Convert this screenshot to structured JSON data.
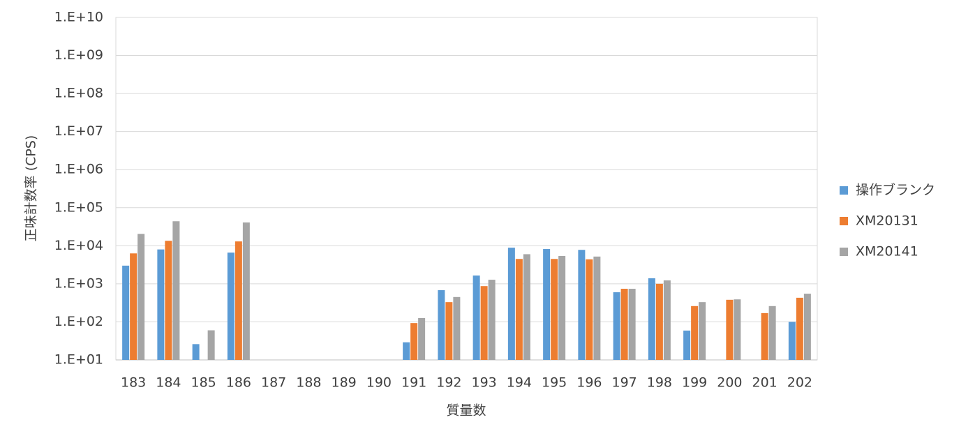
{
  "chart_data": {
    "type": "bar",
    "y_label": "正味計数率 (CPS)",
    "x_label": "質量数",
    "categories": [
      "183",
      "184",
      "185",
      "186",
      "187",
      "188",
      "189",
      "190",
      "191",
      "192",
      "193",
      "194",
      "195",
      "196",
      "197",
      "198",
      "199",
      "200",
      "201",
      "202"
    ],
    "series": [
      {
        "name": "操作ブランク",
        "color": "#5b9bd5",
        "values": [
          3000,
          8000,
          26,
          6600,
          10,
          10,
          10,
          10,
          29,
          680,
          1650,
          8900,
          8200,
          7800,
          600,
          1400,
          59,
          10,
          10,
          100
        ]
      },
      {
        "name": "XM20131",
        "color": "#ed7d31",
        "values": [
          6300,
          13500,
          10,
          13000,
          10,
          10,
          10,
          10,
          93,
          330,
          870,
          4500,
          4500,
          4400,
          740,
          1000,
          260,
          380,
          170,
          430
        ]
      },
      {
        "name": "XM20141",
        "color": "#a5a5a5",
        "values": [
          20500,
          44000,
          60,
          41000,
          10,
          10,
          10,
          10,
          126,
          450,
          1280,
          6000,
          5400,
          5200,
          740,
          1230,
          330,
          390,
          260,
          550
        ]
      }
    ],
    "ylim": [
      10,
      10000000000
    ],
    "log_scale": true,
    "grid": true,
    "legend": "right",
    "yticks": [
      {
        "value": 10,
        "label": "1.E+01"
      },
      {
        "value": 100,
        "label": "1.E+02"
      },
      {
        "value": 1000,
        "label": "1.E+03"
      },
      {
        "value": 10000,
        "label": "1.E+04"
      },
      {
        "value": 100000,
        "label": "1.E+05"
      },
      {
        "value": 1000000,
        "label": "1.E+06"
      },
      {
        "value": 10000000,
        "label": "1.E+07"
      },
      {
        "value": 100000000,
        "label": "1.E+08"
      },
      {
        "value": 1000000000,
        "label": "1.E+09"
      },
      {
        "value": 10000000000,
        "label": "1.E+10"
      }
    ]
  }
}
